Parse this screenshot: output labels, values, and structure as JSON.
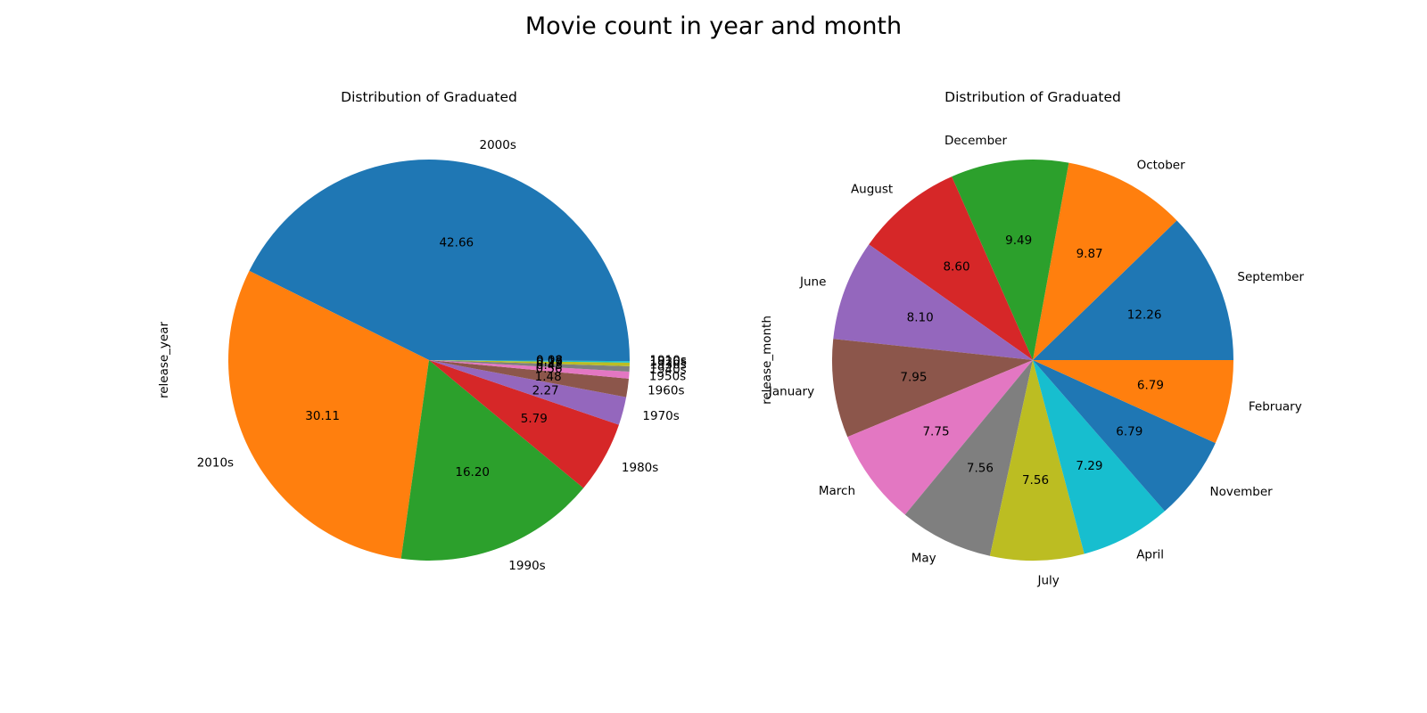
{
  "figure": {
    "suptitle": "Movie count in year and month"
  },
  "chart_data": [
    {
      "type": "pie",
      "title": "Distribution of Graduated",
      "ylabel": "release_year",
      "start_angle": 0,
      "direction": "counterclockwise",
      "pct_format": "%.2f",
      "colors": [
        "#1f77b4",
        "#ff7f0e",
        "#2ca02c",
        "#d62728",
        "#9467bd",
        "#8c564b",
        "#e377c2",
        "#7f7f7f",
        "#bcbd22",
        "#17becf"
      ],
      "slices": [
        {
          "label": "2000s",
          "value": 42.66,
          "pct_label": "42.66"
        },
        {
          "label": "2010s",
          "value": 30.11,
          "pct_label": "30.11"
        },
        {
          "label": "1990s",
          "value": 16.2,
          "pct_label": "16.20"
        },
        {
          "label": "1980s",
          "value": 5.79,
          "pct_label": "5.79"
        },
        {
          "label": "1970s",
          "value": 2.27,
          "pct_label": "2.27"
        },
        {
          "label": "1960s",
          "value": 1.48,
          "pct_label": "1.48"
        },
        {
          "label": "1950s",
          "value": 0.56,
          "pct_label": "0.56"
        },
        {
          "label": "1940s",
          "value": 0.43,
          "pct_label": "0.43"
        },
        {
          "label": "1930s",
          "value": 0.29,
          "pct_label": "0.29"
        },
        {
          "label": "1920s",
          "value": 0.12,
          "pct_label": "0.12"
        },
        {
          "label": "1910s",
          "value": 0.08,
          "pct_label": "0.08"
        }
      ]
    },
    {
      "type": "pie",
      "title": "Distribution of Graduated",
      "ylabel": "release_month",
      "start_angle": 0,
      "direction": "counterclockwise",
      "pct_format": "%.2f",
      "colors": [
        "#1f77b4",
        "#ff7f0e",
        "#2ca02c",
        "#d62728",
        "#9467bd",
        "#8c564b",
        "#e377c2",
        "#7f7f7f",
        "#bcbd22",
        "#17becf"
      ],
      "slices": [
        {
          "label": "September",
          "value": 12.26,
          "pct_label": "12.26"
        },
        {
          "label": "October",
          "value": 9.87,
          "pct_label": "9.87"
        },
        {
          "label": "December",
          "value": 9.49,
          "pct_label": "9.49"
        },
        {
          "label": "August",
          "value": 8.6,
          "pct_label": "8.60"
        },
        {
          "label": "June",
          "value": 8.1,
          "pct_label": "8.10"
        },
        {
          "label": "January",
          "value": 7.95,
          "pct_label": "7.95"
        },
        {
          "label": "March",
          "value": 7.75,
          "pct_label": "7.75"
        },
        {
          "label": "May",
          "value": 7.56,
          "pct_label": "7.56"
        },
        {
          "label": "July",
          "value": 7.56,
          "pct_label": "7.56"
        },
        {
          "label": "April",
          "value": 7.29,
          "pct_label": "7.29"
        },
        {
          "label": "November",
          "value": 6.79,
          "pct_label": "6.79"
        },
        {
          "label": "February",
          "value": 6.79,
          "pct_label": "6.79"
        }
      ]
    }
  ]
}
